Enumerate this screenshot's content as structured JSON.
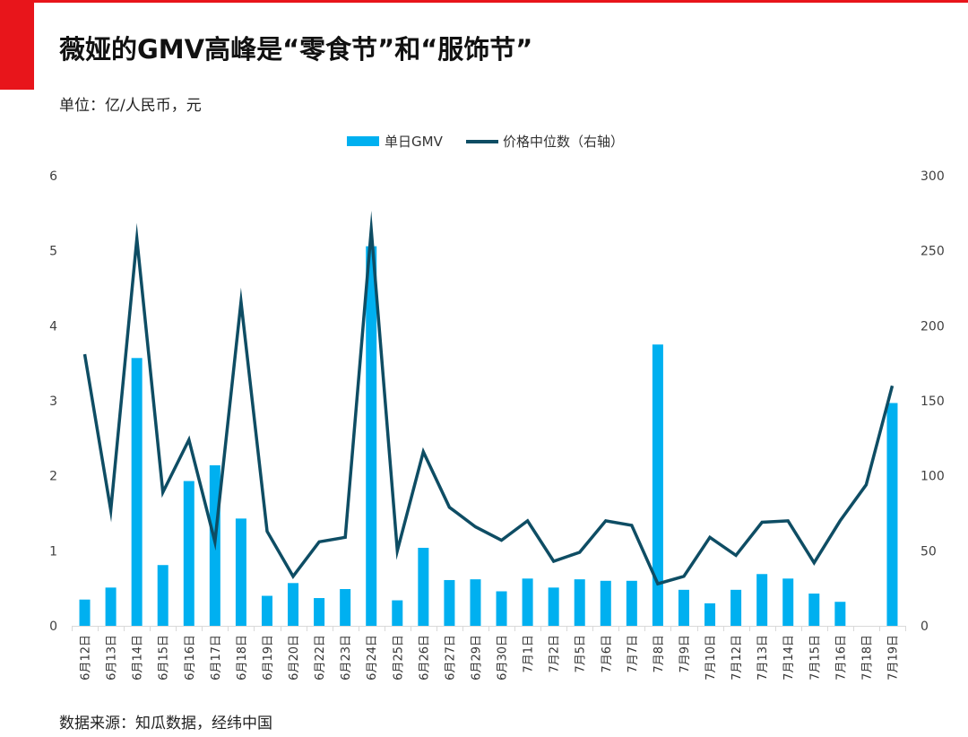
{
  "header": {
    "title": "薇娅的GMV高峰是“零食节”和“服饰节”",
    "unit": "单位：亿/人民币，元"
  },
  "footer": {
    "source": "数据来源：知瓜数据，经纬中国"
  },
  "colors": {
    "brand_red": "#e8151b",
    "bar": "#00b0f0",
    "line": "#0e4d64",
    "grid": "#d9d9d9",
    "axis_text": "#404040"
  },
  "chart_data": {
    "type": "bar",
    "categories": [
      "6月12日",
      "6月13日",
      "6月14日",
      "6月15日",
      "6月16日",
      "6月17日",
      "6月18日",
      "6月19日",
      "6月20日",
      "6月22日",
      "6月23日",
      "6月24日",
      "6月25日",
      "6月26日",
      "6月27日",
      "6月29日",
      "6月30日",
      "7月1日",
      "7月2日",
      "7月5日",
      "7月6日",
      "7月7日",
      "7月8日",
      "7月9日",
      "7月10日",
      "7月12日",
      "7月13日",
      "7月14日",
      "7月15日",
      "7月16日",
      "7月18日",
      "7月19日"
    ],
    "series": [
      {
        "name": "单日GMV",
        "type": "bar",
        "axis": "left",
        "values": [
          0.35,
          0.51,
          3.57,
          0.81,
          1.93,
          2.14,
          1.43,
          0.4,
          0.57,
          0.37,
          0.49,
          5.06,
          0.34,
          1.04,
          0.61,
          0.62,
          0.46,
          0.63,
          0.51,
          0.62,
          0.6,
          0.6,
          3.75,
          0.48,
          0.3,
          0.48,
          0.69,
          0.63,
          0.43,
          0.32,
          null,
          2.97
        ]
      },
      {
        "name": "价格中位数（右轴）",
        "type": "line",
        "axis": "right",
        "values": [
          181,
          77,
          258,
          89,
          124,
          56,
          216,
          63,
          33,
          56,
          59,
          264,
          50,
          116,
          79,
          66,
          57,
          70,
          43,
          49,
          70,
          67,
          28,
          33,
          59,
          47,
          69,
          70,
          42,
          70,
          94,
          160
        ]
      }
    ],
    "y_left": {
      "min": 0,
      "max": 6,
      "ticks": [
        "0",
        "1",
        "2",
        "3",
        "4",
        "5",
        "6"
      ]
    },
    "y_right": {
      "min": 0,
      "max": 300,
      "ticks": [
        "0",
        "50",
        "100",
        "150",
        "200",
        "250",
        "300"
      ]
    },
    "grid": false,
    "legend": "top-center"
  }
}
